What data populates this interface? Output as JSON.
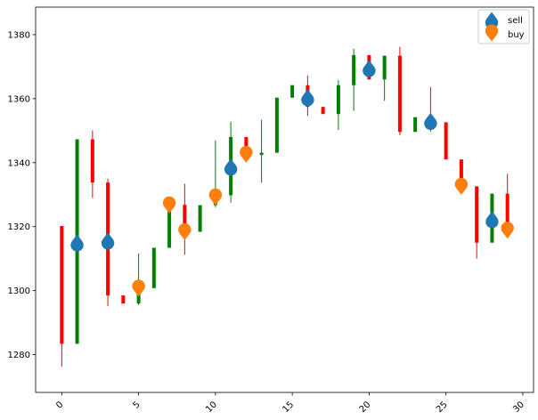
{
  "chart_data": {
    "type": "candlestick",
    "xlim": [
      -1.7,
      30.7
    ],
    "ylim": [
      1268.2,
      1388.6
    ],
    "x_ticks": [
      0,
      5,
      10,
      15,
      20,
      25,
      30
    ],
    "x_tick_labels": [
      "0",
      "5",
      "10",
      "15",
      "20",
      "25",
      "30"
    ],
    "y_ticks": [
      1280,
      1300,
      1320,
      1340,
      1360,
      1380
    ],
    "y_tick_labels": [
      "1280",
      "1300",
      "1320",
      "1340",
      "1360",
      "1380"
    ],
    "grid": false,
    "legend_position": "top-right",
    "colors": {
      "up": "#008000",
      "down": "#ff0000",
      "sell": "#1f77b4",
      "buy": "#ff7f0e"
    },
    "candles": [
      {
        "x": 0,
        "open": 1320.2,
        "close": 1283.4,
        "high": 1320.2,
        "low": 1276.2
      },
      {
        "x": 1,
        "open": 1283.4,
        "close": 1347.3,
        "high": 1347.3,
        "low": 1283.4
      },
      {
        "x": 2,
        "open": 1347.3,
        "close": 1333.8,
        "high": 1350.1,
        "low": 1329.0
      },
      {
        "x": 3,
        "open": 1333.8,
        "close": 1298.5,
        "high": 1335.0,
        "low": 1295.2
      },
      {
        "x": 4,
        "open": 1298.5,
        "close": 1296.0,
        "high": 1298.5,
        "low": 1296.0
      },
      {
        "x": 5,
        "open": 1296.0,
        "close": 1300.8,
        "high": 1311.6,
        "low": 1295.5
      },
      {
        "x": 6,
        "open": 1300.8,
        "close": 1313.4,
        "high": 1313.4,
        "low": 1300.8
      },
      {
        "x": 7,
        "open": 1313.4,
        "close": 1326.8,
        "high": 1326.8,
        "low": 1313.4
      },
      {
        "x": 8,
        "open": 1326.8,
        "close": 1318.4,
        "high": 1333.4,
        "low": 1311.2
      },
      {
        "x": 9,
        "open": 1318.4,
        "close": 1326.7,
        "high": 1326.7,
        "low": 1318.4
      },
      {
        "x": 10,
        "open": 1326.7,
        "close": 1329.8,
        "high": 1346.9,
        "low": 1326.1
      },
      {
        "x": 11,
        "open": 1329.8,
        "close": 1348.0,
        "high": 1352.8,
        "low": 1327.5
      },
      {
        "x": 12,
        "open": 1348.0,
        "close": 1342.4,
        "high": 1348.0,
        "low": 1342.4
      },
      {
        "x": 13,
        "open": 1342.4,
        "close": 1343.1,
        "high": 1353.4,
        "low": 1333.8
      },
      {
        "x": 14,
        "open": 1343.1,
        "close": 1360.3,
        "high": 1360.3,
        "low": 1343.1
      },
      {
        "x": 15,
        "open": 1360.3,
        "close": 1364.2,
        "high": 1364.2,
        "low": 1360.3
      },
      {
        "x": 16,
        "open": 1364.2,
        "close": 1357.4,
        "high": 1367.2,
        "low": 1354.6
      },
      {
        "x": 17,
        "open": 1357.4,
        "close": 1355.2,
        "high": 1357.4,
        "low": 1355.2
      },
      {
        "x": 18,
        "open": 1355.2,
        "close": 1364.2,
        "high": 1365.8,
        "low": 1350.2
      },
      {
        "x": 19,
        "open": 1364.2,
        "close": 1373.6,
        "high": 1375.6,
        "low": 1356.2
      },
      {
        "x": 20,
        "open": 1373.6,
        "close": 1366.0,
        "high": 1373.6,
        "low": 1366.0
      },
      {
        "x": 21,
        "open": 1366.0,
        "close": 1373.4,
        "high": 1373.4,
        "low": 1359.3
      },
      {
        "x": 22,
        "open": 1373.4,
        "close": 1349.6,
        "high": 1376.2,
        "low": 1348.6
      },
      {
        "x": 23,
        "open": 1349.6,
        "close": 1354.2,
        "high": 1354.2,
        "low": 1349.6
      },
      {
        "x": 24,
        "open": 1354.2,
        "close": 1352.6,
        "high": 1363.6,
        "low": 1349.7
      },
      {
        "x": 25,
        "open": 1352.6,
        "close": 1341.0,
        "high": 1352.6,
        "low": 1341.0
      },
      {
        "x": 26,
        "open": 1341.0,
        "close": 1332.6,
        "high": 1341.0,
        "low": 1332.6
      },
      {
        "x": 27,
        "open": 1332.6,
        "close": 1315.0,
        "high": 1332.6,
        "low": 1310.0
      },
      {
        "x": 28,
        "open": 1315.0,
        "close": 1330.3,
        "high": 1330.3,
        "low": 1315.0
      },
      {
        "x": 29,
        "open": 1330.3,
        "close": 1317.0,
        "high": 1336.5,
        "low": 1317.0
      }
    ],
    "series": [
      {
        "name": "sell",
        "marker": "triangle-up",
        "x": [
          1,
          3,
          11,
          16,
          20,
          24,
          28
        ],
        "y": [
          1314.9,
          1315.5,
          1338.6,
          1360.3,
          1369.4,
          1352.9,
          1322.2
        ]
      },
      {
        "name": "buy",
        "marker": "triangle-down",
        "x": [
          5,
          7,
          8,
          10,
          12,
          26,
          29
        ],
        "y": [
          1300.8,
          1326.8,
          1318.4,
          1329.3,
          1342.6,
          1332.6,
          1318.9
        ]
      }
    ]
  }
}
